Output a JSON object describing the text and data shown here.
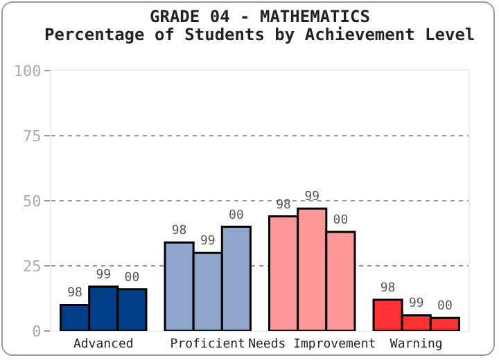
{
  "chart_data": {
    "type": "bar",
    "title": "GRADE 04 - MATHEMATICS",
    "subtitle": "Percentage of Students by Achievement Level",
    "categories": [
      "Advanced",
      "Proficient",
      "Needs Improvement",
      "Warning"
    ],
    "series": [
      {
        "name": "98",
        "colors": [
          "#003f87",
          "#8fa7cc",
          "#ff9999",
          "#ff3333"
        ],
        "values": [
          10,
          34,
          44,
          12
        ]
      },
      {
        "name": "99",
        "colors": [
          "#003f87",
          "#8fa7cc",
          "#ff9999",
          "#ff3333"
        ],
        "values": [
          17,
          30,
          47,
          6
        ]
      },
      {
        "name": "00",
        "colors": [
          "#003f87",
          "#8fa7cc",
          "#ff9999",
          "#ff3333"
        ],
        "values": [
          16,
          40,
          38,
          5
        ]
      }
    ],
    "ylim": [
      0,
      100
    ],
    "yticks": [
      0,
      25,
      50,
      75,
      100
    ],
    "grid": "y",
    "legend": false
  }
}
